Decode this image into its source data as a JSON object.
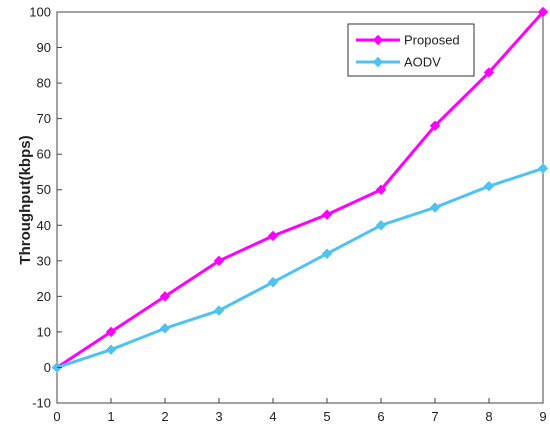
{
  "chart_data": {
    "type": "line",
    "x": [
      0,
      1,
      2,
      3,
      4,
      5,
      6,
      7,
      8,
      9
    ],
    "series": [
      {
        "name": "Proposed",
        "color": "#ff00ff",
        "values": [
          0,
          10,
          20,
          30,
          37,
          43,
          50,
          68,
          83,
          100
        ]
      },
      {
        "name": "AODV",
        "color": "#4fc3f0",
        "values": [
          0,
          5,
          11,
          16,
          24,
          32,
          40,
          45,
          51,
          56
        ]
      }
    ],
    "xlabel": "",
    "ylabel": "Throughput(kbps)",
    "xlim": [
      0,
      9
    ],
    "ylim": [
      -10,
      100
    ],
    "xticks": [
      "0",
      "1",
      "2",
      "3",
      "4",
      "5",
      "6",
      "7",
      "8",
      "9"
    ],
    "yticks": [
      "-10",
      "0",
      "10",
      "20",
      "30",
      "40",
      "50",
      "60",
      "70",
      "80",
      "90",
      "100"
    ],
    "grid": true,
    "legend_position": "top-right",
    "marker": "diamond"
  }
}
